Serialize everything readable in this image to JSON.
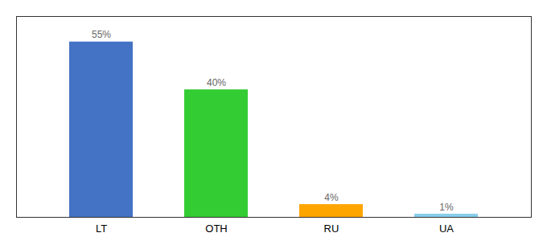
{
  "chart_data": {
    "type": "bar",
    "categories": [
      "LT",
      "OTH",
      "RU",
      "UA"
    ],
    "values": [
      55,
      40,
      4,
      1
    ],
    "value_labels": [
      "55%",
      "40%",
      "4%",
      "1%"
    ],
    "colors": [
      "#4472C4",
      "#33CC33",
      "#FFA500",
      "#87CEEB"
    ],
    "ylim": [
      0,
      63
    ],
    "data_labels": true,
    "tick_labels": "x"
  }
}
